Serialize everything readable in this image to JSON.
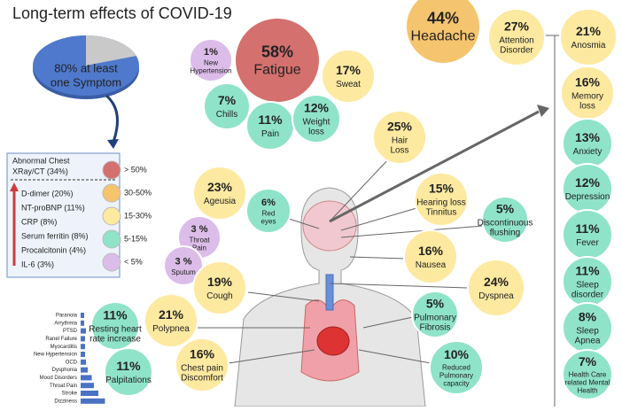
{
  "title": "Long-term effects of COVID-19",
  "pie": {
    "label": [
      "80% at least",
      "one Symptom"
    ]
  },
  "markers": {
    "title": [
      "Abnormal Chest",
      "XRay/CT (34%)"
    ],
    "items": [
      "D-dimer (20%)",
      "NT-proBNP (11%)",
      "CRP (8%)",
      "Serum ferritin (8%)",
      "Procalcitonin (4%)",
      "IL-6 (3%)"
    ]
  },
  "key": [
    {
      "label": "> 50%",
      "color": "#d4706e"
    },
    {
      "label": "30-50%",
      "color": "#f5c46e"
    },
    {
      "label": "15-30%",
      "color": "#fde9a0"
    },
    {
      "label": "5-15%",
      "color": "#8fe3c9"
    },
    {
      "label": "< 5%",
      "color": "#dcbde9"
    }
  ],
  "bubbles": [
    {
      "pct": "44%",
      "label": [
        "Headache"
      ],
      "color": "#f5c46e"
    },
    {
      "pct": "27%",
      "label": [
        "Attention",
        "Disorder"
      ],
      "color": "#fde9a0"
    },
    {
      "pct": "21%",
      "label": [
        "Anosmia"
      ],
      "color": "#fde9a0"
    },
    {
      "pct": "16%",
      "label": [
        "Memory",
        "loss"
      ],
      "color": "#fde9a0"
    },
    {
      "pct": "13%",
      "label": [
        "Anxiety"
      ],
      "color": "#8fe3c9"
    },
    {
      "pct": "12%",
      "label": [
        "Depression"
      ],
      "color": "#8fe3c9"
    },
    {
      "pct": "11%",
      "label": [
        "Fever"
      ],
      "color": "#8fe3c9"
    },
    {
      "pct": "11%",
      "label": [
        "Sleep",
        "disorder"
      ],
      "color": "#8fe3c9"
    },
    {
      "pct": "8%",
      "label": [
        "Sleep",
        "Apnea"
      ],
      "color": "#8fe3c9"
    },
    {
      "pct": "7%",
      "label": [
        "Health Care",
        "related Mental",
        "Health"
      ],
      "color": "#8fe3c9"
    },
    {
      "pct": "58%",
      "label": [
        "Fatigue"
      ],
      "color": "#d4706e"
    },
    {
      "pct": "1%",
      "label": [
        "New",
        "Hypertension"
      ],
      "color": "#dcbde9"
    },
    {
      "pct": "17%",
      "label": [
        "Sweat"
      ],
      "color": "#fde9a0"
    },
    {
      "pct": "7%",
      "label": [
        "Chills"
      ],
      "color": "#8fe3c9"
    },
    {
      "pct": "11%",
      "label": [
        "Pain"
      ],
      "color": "#8fe3c9"
    },
    {
      "pct": "12%",
      "label": [
        "Weight",
        "loss"
      ],
      "color": "#8fe3c9"
    },
    {
      "pct": "25%",
      "label": [
        "Hair",
        "Loss"
      ],
      "color": "#fde9a0"
    },
    {
      "pct": "23%",
      "label": [
        "Ageusia"
      ],
      "color": "#fde9a0"
    },
    {
      "pct": "6%",
      "label": [
        "Red",
        "eyes"
      ],
      "color": "#8fe3c9"
    },
    {
      "pct": "15%",
      "label": [
        "Hearing loss",
        "Tinnitus"
      ],
      "color": "#fde9a0"
    },
    {
      "pct": "5%",
      "label": [
        "Discontinuous",
        "flushing"
      ],
      "color": "#8fe3c9"
    },
    {
      "pct": "3 %",
      "label": [
        "Throat",
        "Pain"
      ],
      "color": "#dcbde9"
    },
    {
      "pct": "3 %",
      "label": [
        "Sputum"
      ],
      "color": "#dcbde9"
    },
    {
      "pct": "16%",
      "label": [
        "Nausea"
      ],
      "color": "#fde9a0"
    },
    {
      "pct": "19%",
      "label": [
        "Cough"
      ],
      "color": "#fde9a0"
    },
    {
      "pct": "24%",
      "label": [
        "Dyspnea"
      ],
      "color": "#fde9a0"
    },
    {
      "pct": "21%",
      "label": [
        "Polypnea"
      ],
      "color": "#fde9a0"
    },
    {
      "pct": "5%",
      "label": [
        "Pulmonary",
        "Fibrosis"
      ],
      "color": "#8fe3c9"
    },
    {
      "pct": "11%",
      "label": [
        "Resting heart",
        "rate increase"
      ],
      "color": "#8fe3c9"
    },
    {
      "pct": "11%",
      "label": [
        "Palpitations"
      ],
      "color": "#8fe3c9"
    },
    {
      "pct": "16%",
      "label": [
        "Chest pain",
        "Discomfort"
      ],
      "color": "#fde9a0"
    },
    {
      "pct": "10%",
      "label": [
        "Reduced",
        "Pulmonary",
        "capacity"
      ],
      "color": "#8fe3c9"
    }
  ],
  "bars": {
    "color": "#4a72c4",
    "categories": [
      "Paranoia",
      "Arrythmia",
      "PTSD",
      "Ranel Failure",
      "Myocarditis",
      "New Hypertension",
      "OCD",
      "Dysphonia",
      "Mood Disorders",
      "Throat Pain",
      "Stroke",
      "Dizziness"
    ],
    "values": [
      0.8,
      0.8,
      1.2,
      1,
      1,
      1,
      1.2,
      1.6,
      2.5,
      3,
      4,
      5.5
    ]
  }
}
